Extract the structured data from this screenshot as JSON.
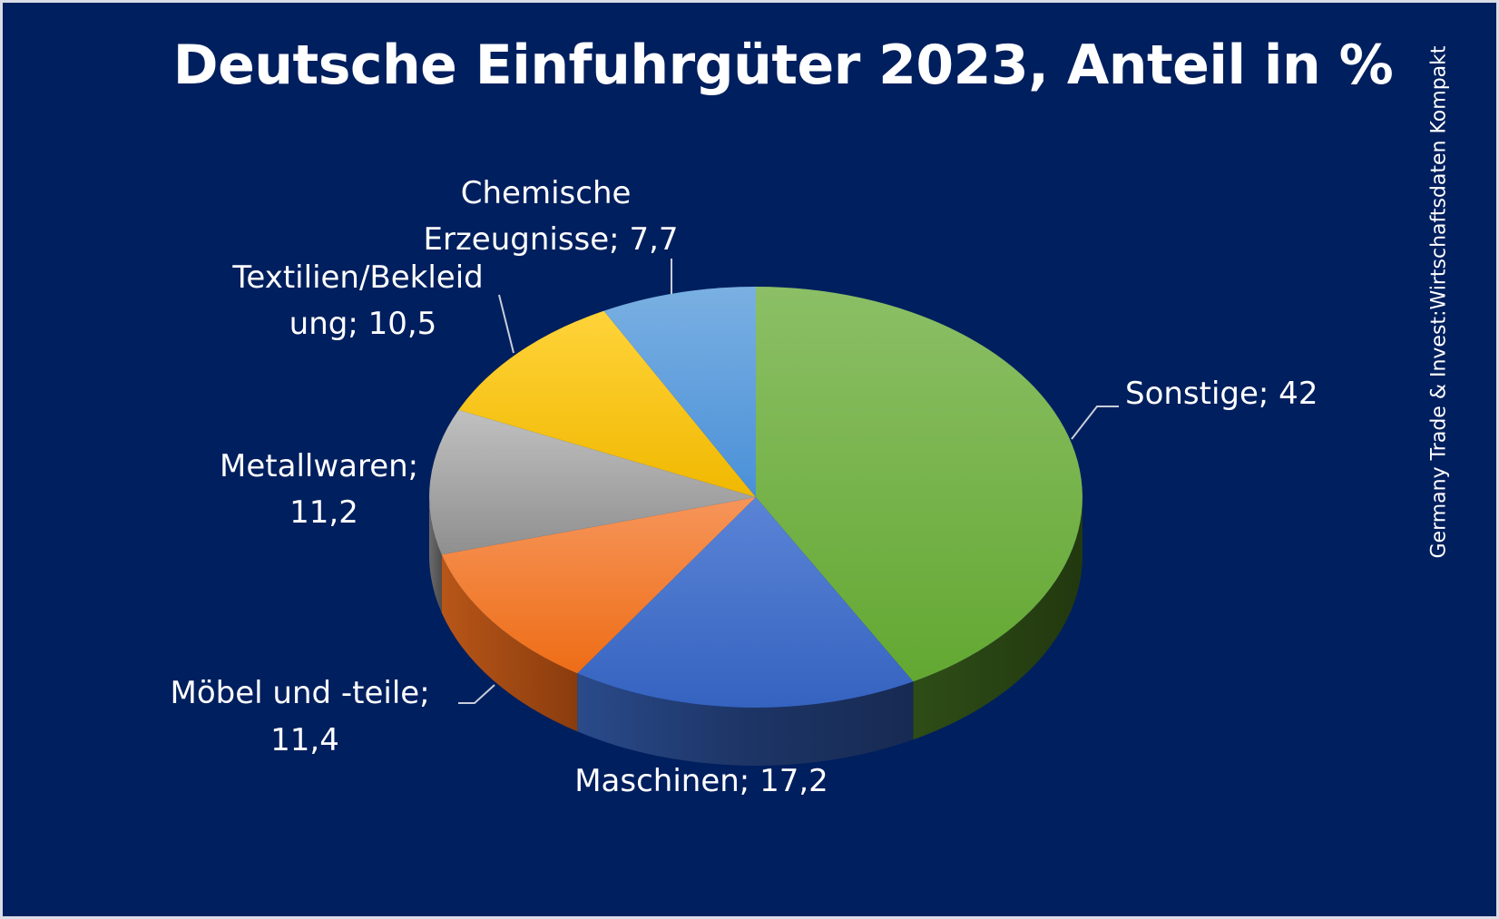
{
  "chart_data": {
    "type": "pie",
    "title": "Deutsche Einfuhrgüter 2023, Anteil in %",
    "source": "Germany Trade & Invest:Wirtschaftsdaten Kompakt",
    "slices": [
      {
        "name": "Sonstige",
        "value": 42,
        "label": "Sonstige; 42",
        "color": "#70ad47"
      },
      {
        "name": "Maschinen",
        "value": 17.2,
        "label": "Maschinen; 17,2",
        "color": "#4472c4"
      },
      {
        "name": "Möbel und -teile",
        "value": 11.4,
        "label_lines": [
          "Möbel und -teile;",
          "11,4"
        ],
        "color": "#ed7d31"
      },
      {
        "name": "Metallwaren",
        "value": 11.2,
        "label_lines": [
          "Metallwaren;",
          "11,2"
        ],
        "color": "#a5a5a5"
      },
      {
        "name": "Textilien/Bekleidung",
        "value": 10.5,
        "label_lines": [
          "Textilien/Bekleid",
          "ung; 10,5"
        ],
        "color": "#ffc000"
      },
      {
        "name": "Chemische Erzeugnisse",
        "value": 7.7,
        "label_lines": [
          "Chemische",
          "Erzeugnisse; 7,7"
        ],
        "color": "#5b9bd5"
      }
    ]
  }
}
